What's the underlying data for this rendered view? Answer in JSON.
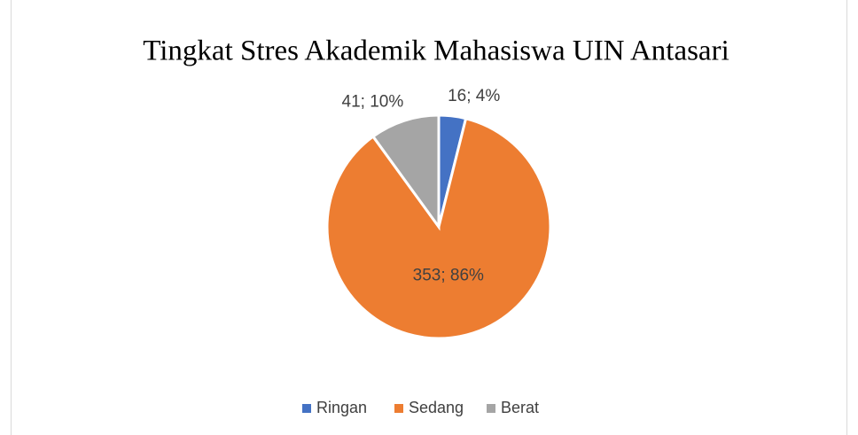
{
  "chart_data": {
    "type": "pie",
    "title": "Tingkat Stres Akademik Mahasiswa UIN Antasari",
    "categories": [
      "Ringan",
      "Sedang",
      "Berat"
    ],
    "values": [
      16,
      353,
      41
    ],
    "value_labels": [
      "16; 4%",
      "353; 86%",
      "41; 10%"
    ],
    "colors": [
      "#4472c4",
      "#ed7d31",
      "#a5a5a5"
    ],
    "legend": "bottom"
  }
}
